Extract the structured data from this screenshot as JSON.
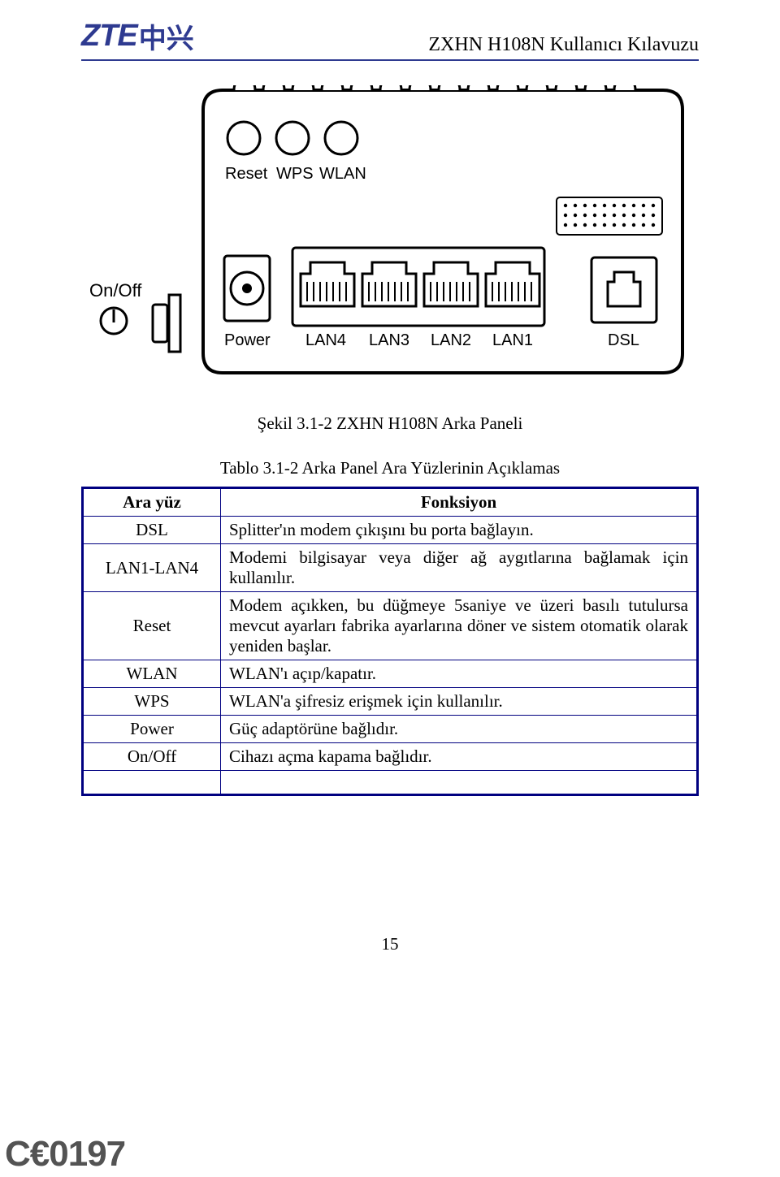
{
  "header": {
    "logo_main": "ZTE",
    "logo_cjk": "中兴",
    "doc_title": "ZXHN H108N Kullanıcı Kılavuzu"
  },
  "diagram": {
    "side_label_title": "On/Off",
    "side_icon_glyph": "⏻",
    "top_buttons": [
      "Reset",
      "WPS",
      "WLAN"
    ],
    "bottom_ports": [
      "Power",
      "LAN4",
      "LAN3",
      "LAN2",
      "LAN1",
      "DSL"
    ],
    "colors": {
      "stroke": "#000000",
      "fill": "#ffffff",
      "text": "#000000"
    },
    "stroke_width": 3
  },
  "figure_caption": "Şekil 3.1-2 ZXHN H108N Arka Paneli",
  "table_caption": "Tablo 3.1-2 Arka Panel Ara Yüzlerinin Açıklamas",
  "table": {
    "header": {
      "col1": "Ara yüz",
      "col2": "Fonksiyon"
    },
    "rows": [
      {
        "label": "DSL",
        "desc": "Splitter'ın modem çıkışını bu porta bağlayın.",
        "justify": false
      },
      {
        "label": "LAN1-LAN4",
        "desc": "Modemi bilgisayar veya diğer ağ aygıtlarına bağlamak için kullanılır.",
        "justify": true
      },
      {
        "label": "Reset",
        "desc": "Modem açıkken, bu düğmeye 5saniye ve üzeri basılı tutulursa mevcut ayarları fabrika ayarlarına döner ve sistem otomatik olarak yeniden başlar.",
        "justify": true
      },
      {
        "label": "WLAN",
        "desc": "WLAN'ı açıp/kapatır.",
        "justify": false
      },
      {
        "label": "WPS",
        "desc": "WLAN'a şifresiz erişmek için kullanılır.",
        "justify": false
      },
      {
        "label": "Power",
        "desc": "Güç adaptörüne bağlıdır.",
        "justify": false
      },
      {
        "label": "On/Off",
        "desc": "Cihazı açma kapama bağlıdır.",
        "justify": false
      }
    ]
  },
  "page_number": "15",
  "ce_mark": "C€0197"
}
